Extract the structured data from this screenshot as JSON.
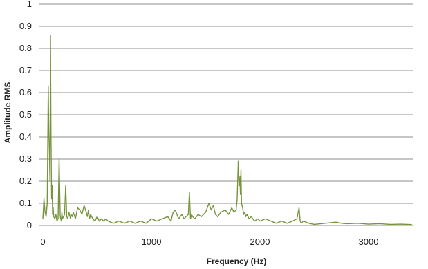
{
  "chart_data": {
    "type": "line",
    "title": "",
    "xlabel": "Frequency (Hz)",
    "ylabel": "Amplitude RMS",
    "xlim": [
      0,
      3500
    ],
    "ylim": [
      0,
      1
    ],
    "x_ticks": [
      "0",
      "1000",
      "2000",
      "3000"
    ],
    "x_tick_values": [
      0,
      1000,
      2000,
      3000
    ],
    "y_ticks": [
      "0",
      "0.1",
      "0.2",
      "0.3",
      "0.4",
      "0.5",
      "0.6",
      "0.7",
      "0.8",
      "0.9",
      "1"
    ],
    "y_tick_values": [
      0,
      0.1,
      0.2,
      0.3,
      0.4,
      0.5,
      0.6,
      0.7,
      0.8,
      0.9,
      1
    ],
    "grid": "horizontal",
    "legend": "none",
    "series_color": "#77933c",
    "series": [
      {
        "name": "",
        "x": [
          0,
          10,
          20,
          30,
          40,
          50,
          55,
          60,
          65,
          70,
          75,
          80,
          85,
          90,
          95,
          100,
          110,
          120,
          130,
          140,
          150,
          160,
          170,
          175,
          180,
          190,
          200,
          210,
          220,
          230,
          240,
          250,
          255,
          260,
          270,
          280,
          300,
          320,
          340,
          360,
          380,
          400,
          410,
          420,
          430,
          440,
          460,
          480,
          500,
          520,
          540,
          560,
          580,
          600,
          650,
          700,
          750,
          800,
          850,
          900,
          950,
          1000,
          1050,
          1100,
          1150,
          1180,
          1200,
          1220,
          1250,
          1280,
          1300,
          1320,
          1340,
          1350,
          1360,
          1370,
          1380,
          1400,
          1430,
          1460,
          1500,
          1530,
          1550,
          1570,
          1590,
          1610,
          1640,
          1680,
          1710,
          1740,
          1760,
          1780,
          1790,
          1800,
          1805,
          1810,
          1815,
          1820,
          1825,
          1830,
          1840,
          1850,
          1860,
          1870,
          1880,
          1900,
          1920,
          1950,
          1980,
          2000,
          2050,
          2100,
          2150,
          2200,
          2250,
          2300,
          2340,
          2360,
          2370,
          2380,
          2400,
          2450,
          2500,
          2600,
          2700,
          2750,
          2800,
          2900,
          3000,
          3100,
          3200,
          3300,
          3400
        ],
        "y": [
          0.03,
          0.12,
          0.06,
          0.04,
          0.1,
          0.63,
          0.42,
          0.33,
          0.2,
          0.86,
          0.4,
          0.12,
          0.18,
          0.05,
          0.08,
          0.04,
          0.03,
          0.05,
          0.02,
          0.03,
          0.3,
          0.04,
          0.02,
          0.06,
          0.03,
          0.04,
          0.05,
          0.18,
          0.04,
          0.03,
          0.06,
          0.04,
          0.03,
          0.05,
          0.04,
          0.06,
          0.03,
          0.08,
          0.07,
          0.05,
          0.09,
          0.06,
          0.04,
          0.07,
          0.03,
          0.05,
          0.03,
          0.02,
          0.04,
          0.02,
          0.03,
          0.02,
          0.03,
          0.02,
          0.01,
          0.02,
          0.01,
          0.02,
          0.01,
          0.02,
          0.01,
          0.03,
          0.02,
          0.03,
          0.04,
          0.02,
          0.06,
          0.07,
          0.03,
          0.05,
          0.03,
          0.04,
          0.05,
          0.15,
          0.03,
          0.05,
          0.04,
          0.03,
          0.05,
          0.04,
          0.06,
          0.1,
          0.07,
          0.09,
          0.05,
          0.04,
          0.06,
          0.07,
          0.05,
          0.08,
          0.06,
          0.07,
          0.12,
          0.29,
          0.21,
          0.18,
          0.22,
          0.14,
          0.25,
          0.1,
          0.08,
          0.05,
          0.06,
          0.04,
          0.05,
          0.03,
          0.04,
          0.02,
          0.03,
          0.02,
          0.03,
          0.02,
          0.01,
          0.02,
          0.01,
          0.02,
          0.03,
          0.08,
          0.02,
          0.01,
          0.02,
          0.01,
          0.005,
          0.01,
          0.015,
          0.01,
          0.008,
          0.01,
          0.006,
          0.008,
          0.005,
          0.006,
          0.004
        ]
      }
    ]
  }
}
